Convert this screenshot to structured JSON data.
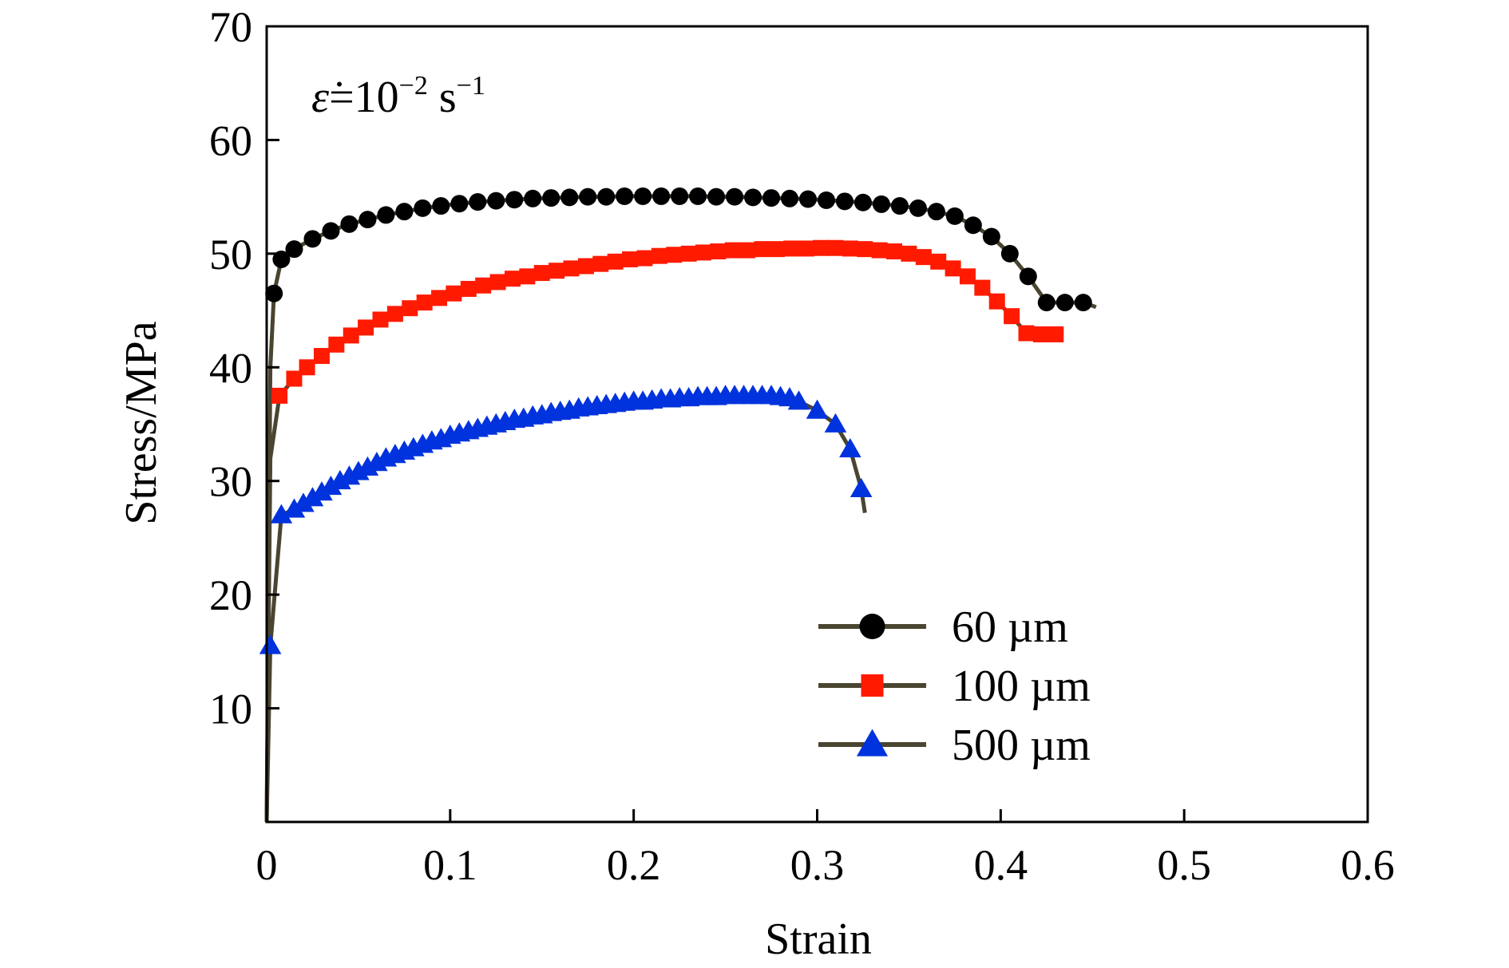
{
  "chart_data": {
    "type": "line",
    "xlabel": "Strain",
    "ylabel": "Stress/MPa",
    "xlim": [
      0,
      0.6
    ],
    "ylim": [
      0,
      70
    ],
    "x_ticks": [
      "0",
      "0.1",
      "0.2",
      "0.3",
      "0.4",
      "0.5",
      "0.6"
    ],
    "x_tick_values": [
      0,
      0.1,
      0.2,
      0.3,
      0.4,
      0.5,
      0.6
    ],
    "y_ticks": [
      "10",
      "20",
      "30",
      "40",
      "50",
      "60",
      "70"
    ],
    "y_tick_values": [
      10,
      20,
      30,
      40,
      50,
      60,
      70
    ],
    "grid": false,
    "legend_position": "lower-right",
    "annotation": {
      "symbol": "ε̇",
      "equals": "=10",
      "exponent": "−2",
      "unit": " s",
      "unit_exponent": "−1"
    },
    "line_color": "#4a4530",
    "series": [
      {
        "name": "60 µm",
        "marker": "circle",
        "color": "#000000",
        "x": [
          0.004,
          0.008,
          0.015,
          0.025,
          0.035,
          0.045,
          0.055,
          0.065,
          0.075,
          0.085,
          0.095,
          0.105,
          0.115,
          0.125,
          0.135,
          0.145,
          0.155,
          0.165,
          0.175,
          0.185,
          0.195,
          0.205,
          0.215,
          0.225,
          0.235,
          0.245,
          0.255,
          0.265,
          0.275,
          0.285,
          0.295,
          0.305,
          0.315,
          0.325,
          0.335,
          0.345,
          0.355,
          0.365,
          0.375,
          0.385,
          0.395,
          0.405,
          0.415,
          0.425,
          0.435,
          0.445
        ],
        "y": [
          46.5,
          49.5,
          50.4,
          51.3,
          52.0,
          52.6,
          53.0,
          53.4,
          53.7,
          54.0,
          54.2,
          54.4,
          54.55,
          54.65,
          54.75,
          54.85,
          54.9,
          54.95,
          55.0,
          55.0,
          55.05,
          55.05,
          55.05,
          55.05,
          55.05,
          55.0,
          55.0,
          54.95,
          54.9,
          54.85,
          54.8,
          54.7,
          54.6,
          54.5,
          54.35,
          54.2,
          54.0,
          53.7,
          53.3,
          52.5,
          51.5,
          50.0,
          48.0,
          45.7,
          45.7,
          45.7
        ]
      },
      {
        "name": "100 µm",
        "marker": "square",
        "color": "#ff1a00",
        "x": [
          0.007,
          0.015,
          0.022,
          0.03,
          0.038,
          0.046,
          0.054,
          0.062,
          0.07,
          0.078,
          0.086,
          0.094,
          0.102,
          0.11,
          0.118,
          0.126,
          0.134,
          0.142,
          0.15,
          0.158,
          0.166,
          0.174,
          0.182,
          0.19,
          0.198,
          0.206,
          0.214,
          0.222,
          0.23,
          0.238,
          0.246,
          0.254,
          0.262,
          0.27,
          0.278,
          0.286,
          0.294,
          0.302,
          0.31,
          0.318,
          0.326,
          0.334,
          0.342,
          0.35,
          0.358,
          0.366,
          0.374,
          0.382,
          0.39,
          0.398,
          0.406,
          0.414,
          0.422,
          0.43
        ],
        "y": [
          37.5,
          39.0,
          40.0,
          41.0,
          42.0,
          42.8,
          43.5,
          44.2,
          44.7,
          45.2,
          45.7,
          46.1,
          46.5,
          46.9,
          47.2,
          47.5,
          47.8,
          48.0,
          48.3,
          48.5,
          48.7,
          48.9,
          49.1,
          49.3,
          49.5,
          49.6,
          49.8,
          49.9,
          50.0,
          50.1,
          50.2,
          50.3,
          50.3,
          50.4,
          50.4,
          50.45,
          50.45,
          50.5,
          50.5,
          50.45,
          50.4,
          50.3,
          50.2,
          50.0,
          49.7,
          49.3,
          48.7,
          48.0,
          47.0,
          45.8,
          44.5,
          43.0,
          42.9,
          42.9
        ]
      },
      {
        "name": "500 µm",
        "marker": "triangle",
        "color": "#0033dd",
        "x": [
          0.002,
          0.008,
          0.015,
          0.02,
          0.025,
          0.03,
          0.035,
          0.04,
          0.045,
          0.05,
          0.055,
          0.06,
          0.065,
          0.07,
          0.075,
          0.08,
          0.085,
          0.09,
          0.095,
          0.1,
          0.105,
          0.11,
          0.115,
          0.12,
          0.125,
          0.13,
          0.135,
          0.14,
          0.145,
          0.15,
          0.155,
          0.16,
          0.165,
          0.17,
          0.175,
          0.18,
          0.185,
          0.19,
          0.195,
          0.2,
          0.205,
          0.21,
          0.215,
          0.22,
          0.225,
          0.23,
          0.235,
          0.24,
          0.245,
          0.25,
          0.255,
          0.26,
          0.265,
          0.27,
          0.275,
          0.28,
          0.285,
          0.29,
          0.3,
          0.31,
          0.318,
          0.324
        ],
        "y": [
          15.5,
          27.0,
          27.5,
          28.0,
          28.5,
          29.0,
          29.5,
          30.0,
          30.4,
          30.8,
          31.2,
          31.6,
          32.0,
          32.3,
          32.6,
          32.9,
          33.2,
          33.5,
          33.7,
          34.0,
          34.2,
          34.4,
          34.6,
          34.8,
          35.0,
          35.2,
          35.4,
          35.5,
          35.7,
          35.8,
          36.0,
          36.1,
          36.2,
          36.4,
          36.5,
          36.6,
          36.7,
          36.8,
          36.9,
          37.0,
          37.0,
          37.1,
          37.2,
          37.2,
          37.3,
          37.3,
          37.4,
          37.4,
          37.4,
          37.5,
          37.5,
          37.5,
          37.5,
          37.5,
          37.5,
          37.4,
          37.3,
          37.0,
          36.2,
          35.0,
          32.8,
          29.3
        ]
      }
    ],
    "elastic_tail": {
      "60 µm": {
        "x": [
          0.0,
          0.002,
          0.004
        ],
        "y": [
          0.0,
          40.0,
          46.5
        ]
      },
      "100 µm": {
        "x": [
          0.0,
          0.002,
          0.007
        ],
        "y": [
          0.0,
          32.0,
          37.5
        ]
      },
      "500 µm": {
        "x": [
          0.0,
          0.002
        ],
        "y": [
          0.0,
          15.5
        ]
      }
    },
    "fracture_tail": {
      "60 µm": {
        "x": [
          0.445,
          0.452
        ],
        "y": [
          45.7,
          45.3
        ]
      },
      "100 µm": {
        "x": [
          0.43,
          0.432
        ],
        "y": [
          42.9,
          42.5
        ]
      },
      "500 µm": {
        "x": [
          0.324,
          0.326
        ],
        "y": [
          29.3,
          27.2
        ]
      }
    }
  }
}
